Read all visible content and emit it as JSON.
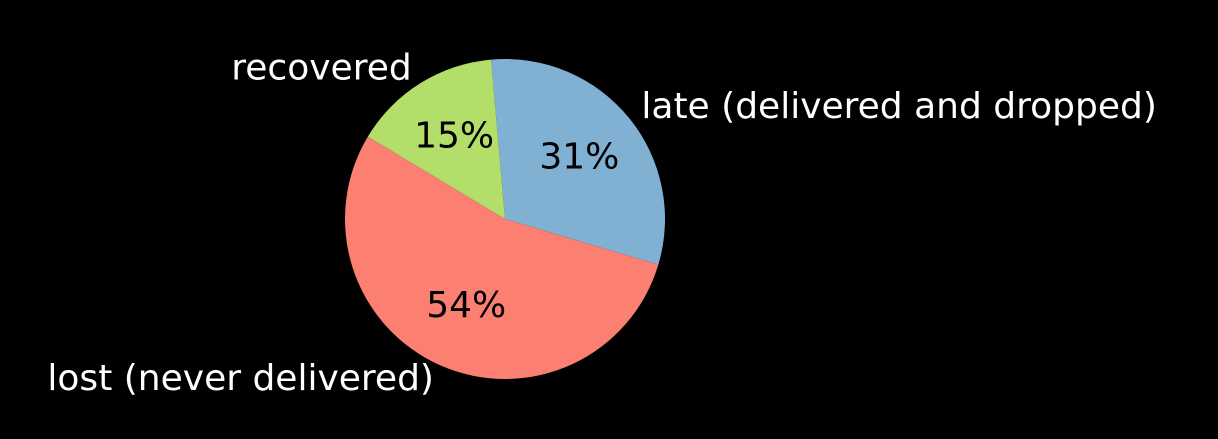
{
  "chart_data": {
    "type": "pie",
    "title": "",
    "slices": [
      {
        "label": "late (delivered and dropped)",
        "value": 31,
        "pct_label": "31%",
        "color": "#80b1d3"
      },
      {
        "label": "lost (never delivered)",
        "value": 54,
        "pct_label": "54%",
        "color": "#fb8072"
      },
      {
        "label": "recovered",
        "value": 15,
        "pct_label": "15%",
        "color": "#b3de69"
      }
    ],
    "start_angle_deg": 95,
    "direction": "clockwise",
    "background": "#000000",
    "label_color": "#ffffff",
    "pct_color": "#000000"
  }
}
